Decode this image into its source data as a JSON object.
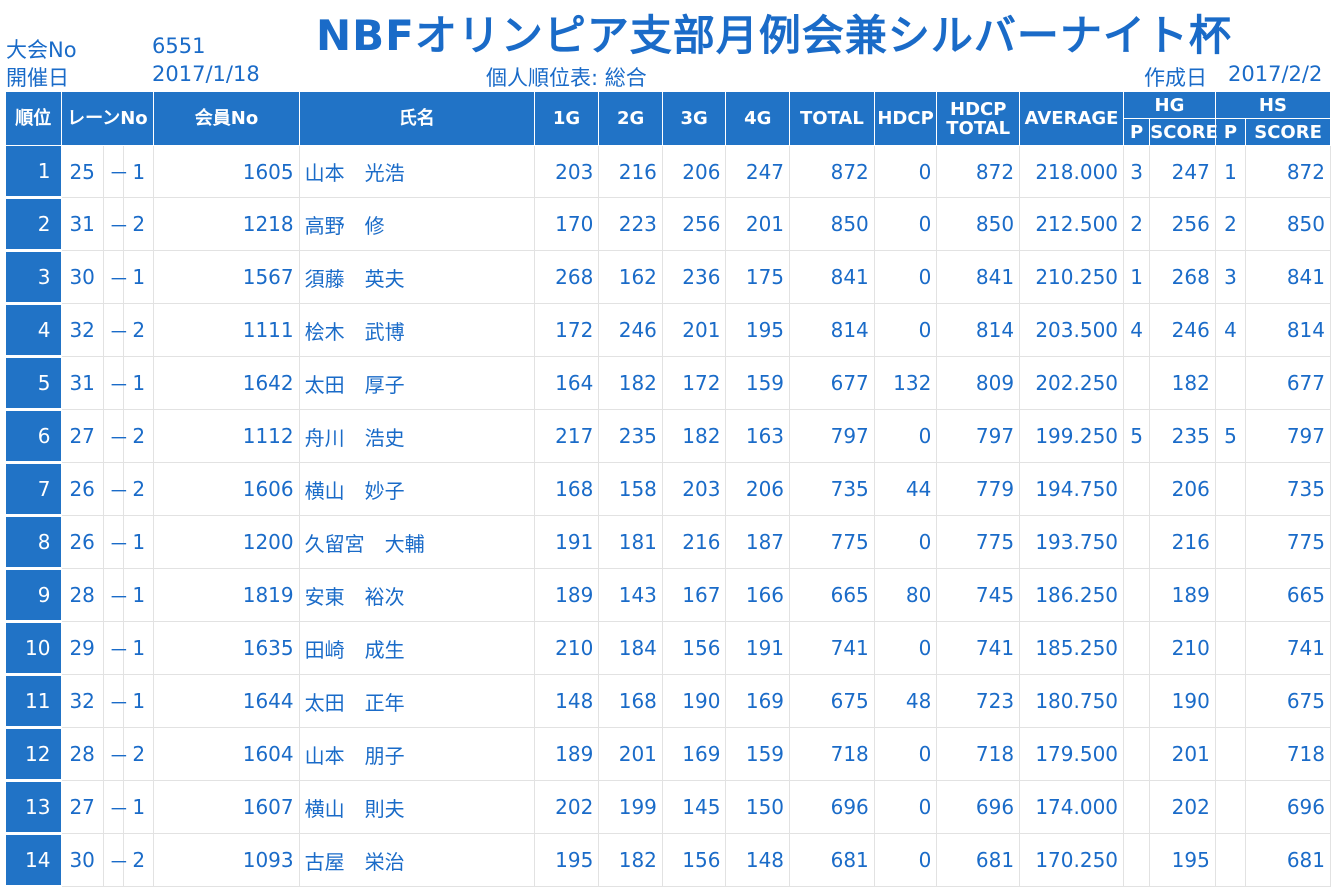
{
  "header": {
    "meet_no_label": "大会No",
    "meet_no": "6551",
    "date_label": "開催日",
    "date": "2017/1/18",
    "title": "NBFオリンピア支部月例会兼シルバーナイト杯",
    "subtitle": "個人順位表: 総合",
    "created_label": "作成日",
    "created_date": "2017/2/2"
  },
  "columns": {
    "rank": "順位",
    "lane": "レーンNo",
    "member": "会員No",
    "name": "氏名",
    "g1": "1G",
    "g2": "2G",
    "g3": "3G",
    "g4": "4G",
    "total": "TOTAL",
    "hdcp": "HDCP",
    "hdcp_total_1": "HDCP",
    "hdcp_total_2": "TOTAL",
    "average": "AVERAGE",
    "hg": "HG",
    "hs": "HS",
    "p": "P",
    "score": "SCORE"
  },
  "rows": [
    {
      "rank": "1",
      "lane_a": "25",
      "dash": "－",
      "lane_b": "1",
      "member": "1605",
      "name": "山本　光浩",
      "g1": "203",
      "g2": "216",
      "g3": "206",
      "g4": "247",
      "total": "872",
      "hdcp": "0",
      "hdcp_total": "872",
      "average": "218.000",
      "hg_p": "3",
      "hg_score": "247",
      "hs_p": "1",
      "hs_score": "872"
    },
    {
      "rank": "2",
      "lane_a": "31",
      "dash": "－",
      "lane_b": "2",
      "member": "1218",
      "name": "高野　修",
      "g1": "170",
      "g2": "223",
      "g3": "256",
      "g4": "201",
      "total": "850",
      "hdcp": "0",
      "hdcp_total": "850",
      "average": "212.500",
      "hg_p": "2",
      "hg_score": "256",
      "hs_p": "2",
      "hs_score": "850"
    },
    {
      "rank": "3",
      "lane_a": "30",
      "dash": "－",
      "lane_b": "1",
      "member": "1567",
      "name": "須藤　英夫",
      "g1": "268",
      "g2": "162",
      "g3": "236",
      "g4": "175",
      "total": "841",
      "hdcp": "0",
      "hdcp_total": "841",
      "average": "210.250",
      "hg_p": "1",
      "hg_score": "268",
      "hs_p": "3",
      "hs_score": "841"
    },
    {
      "rank": "4",
      "lane_a": "32",
      "dash": "－",
      "lane_b": "2",
      "member": "1111",
      "name": "桧木　武博",
      "g1": "172",
      "g2": "246",
      "g3": "201",
      "g4": "195",
      "total": "814",
      "hdcp": "0",
      "hdcp_total": "814",
      "average": "203.500",
      "hg_p": "4",
      "hg_score": "246",
      "hs_p": "4",
      "hs_score": "814"
    },
    {
      "rank": "5",
      "lane_a": "31",
      "dash": "－",
      "lane_b": "1",
      "member": "1642",
      "name": "太田　厚子",
      "g1": "164",
      "g2": "182",
      "g3": "172",
      "g4": "159",
      "total": "677",
      "hdcp": "132",
      "hdcp_total": "809",
      "average": "202.250",
      "hg_p": "",
      "hg_score": "182",
      "hs_p": "",
      "hs_score": "677"
    },
    {
      "rank": "6",
      "lane_a": "27",
      "dash": "－",
      "lane_b": "2",
      "member": "1112",
      "name": "舟川　浩史",
      "g1": "217",
      "g2": "235",
      "g3": "182",
      "g4": "163",
      "total": "797",
      "hdcp": "0",
      "hdcp_total": "797",
      "average": "199.250",
      "hg_p": "5",
      "hg_score": "235",
      "hs_p": "5",
      "hs_score": "797"
    },
    {
      "rank": "7",
      "lane_a": "26",
      "dash": "－",
      "lane_b": "2",
      "member": "1606",
      "name": "横山　妙子",
      "g1": "168",
      "g2": "158",
      "g3": "203",
      "g4": "206",
      "total": "735",
      "hdcp": "44",
      "hdcp_total": "779",
      "average": "194.750",
      "hg_p": "",
      "hg_score": "206",
      "hs_p": "",
      "hs_score": "735"
    },
    {
      "rank": "8",
      "lane_a": "26",
      "dash": "－",
      "lane_b": "1",
      "member": "1200",
      "name": "久留宮　大輔",
      "g1": "191",
      "g2": "181",
      "g3": "216",
      "g4": "187",
      "total": "775",
      "hdcp": "0",
      "hdcp_total": "775",
      "average": "193.750",
      "hg_p": "",
      "hg_score": "216",
      "hs_p": "",
      "hs_score": "775"
    },
    {
      "rank": "9",
      "lane_a": "28",
      "dash": "－",
      "lane_b": "1",
      "member": "1819",
      "name": "安東　裕次",
      "g1": "189",
      "g2": "143",
      "g3": "167",
      "g4": "166",
      "total": "665",
      "hdcp": "80",
      "hdcp_total": "745",
      "average": "186.250",
      "hg_p": "",
      "hg_score": "189",
      "hs_p": "",
      "hs_score": "665"
    },
    {
      "rank": "10",
      "lane_a": "29",
      "dash": "－",
      "lane_b": "1",
      "member": "1635",
      "name": "田崎　成生",
      "g1": "210",
      "g2": "184",
      "g3": "156",
      "g4": "191",
      "total": "741",
      "hdcp": "0",
      "hdcp_total": "741",
      "average": "185.250",
      "hg_p": "",
      "hg_score": "210",
      "hs_p": "",
      "hs_score": "741"
    },
    {
      "rank": "11",
      "lane_a": "32",
      "dash": "－",
      "lane_b": "1",
      "member": "1644",
      "name": "太田　正年",
      "g1": "148",
      "g2": "168",
      "g3": "190",
      "g4": "169",
      "total": "675",
      "hdcp": "48",
      "hdcp_total": "723",
      "average": "180.750",
      "hg_p": "",
      "hg_score": "190",
      "hs_p": "",
      "hs_score": "675"
    },
    {
      "rank": "12",
      "lane_a": "28",
      "dash": "－",
      "lane_b": "2",
      "member": "1604",
      "name": "山本　朋子",
      "g1": "189",
      "g2": "201",
      "g3": "169",
      "g4": "159",
      "total": "718",
      "hdcp": "0",
      "hdcp_total": "718",
      "average": "179.500",
      "hg_p": "",
      "hg_score": "201",
      "hs_p": "",
      "hs_score": "718"
    },
    {
      "rank": "13",
      "lane_a": "27",
      "dash": "－",
      "lane_b": "1",
      "member": "1607",
      "name": "横山　則夫",
      "g1": "202",
      "g2": "199",
      "g3": "145",
      "g4": "150",
      "total": "696",
      "hdcp": "0",
      "hdcp_total": "696",
      "average": "174.000",
      "hg_p": "",
      "hg_score": "202",
      "hs_p": "",
      "hs_score": "696"
    },
    {
      "rank": "14",
      "lane_a": "30",
      "dash": "－",
      "lane_b": "2",
      "member": "1093",
      "name": "古屋　栄治",
      "g1": "195",
      "g2": "182",
      "g3": "156",
      "g4": "148",
      "total": "681",
      "hdcp": "0",
      "hdcp_total": "681",
      "average": "170.250",
      "hg_p": "",
      "hg_score": "195",
      "hs_p": "",
      "hs_score": "681"
    }
  ],
  "colors": {
    "accent": "#2173c6",
    "text": "#1a6bc8",
    "grid": "#e2e2e2"
  }
}
